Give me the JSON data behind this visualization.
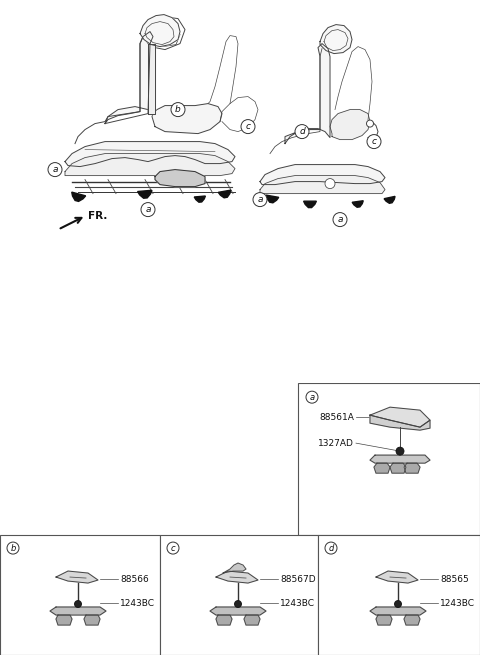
{
  "bg_color": "#ffffff",
  "line_color": "#444444",
  "dark_color": "#222222",
  "mount_color": "#111111",
  "part_numbers": {
    "a1": "88561A",
    "a2": "1327AD",
    "b1": "88566",
    "b2": "1243BC",
    "c1": "88567D",
    "c2": "1243BC",
    "d1": "88565",
    "d2": "1243BC"
  },
  "fr_label": "FR.",
  "figsize": [
    4.8,
    6.55
  ],
  "dpi": 100
}
